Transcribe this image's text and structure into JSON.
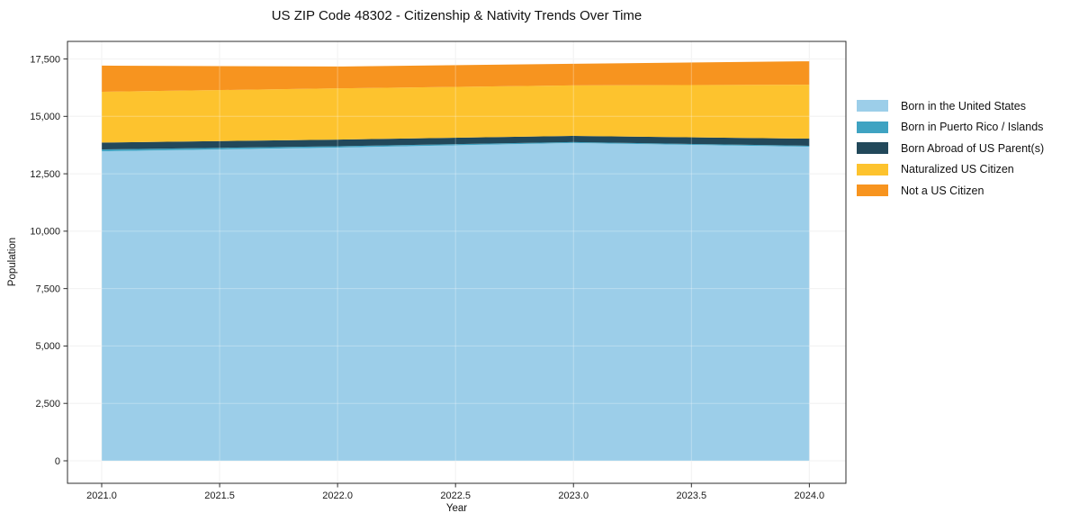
{
  "title": "US ZIP Code 48302 - Citizenship & Nativity Trends Over Time",
  "chart_data": {
    "type": "area",
    "stacked": true,
    "title": "US ZIP Code 48302 - Citizenship & Nativity Trends Over Time",
    "xlabel": "Year",
    "ylabel": "Population",
    "x": [
      2021,
      2022,
      2023,
      2024
    ],
    "series": [
      {
        "name": "Born in the United States",
        "color": "#9ccee9",
        "values": [
          13480,
          13640,
          13840,
          13680
        ]
      },
      {
        "name": "Born in Puerto Rico / Islands",
        "color": "#3fa3c2",
        "values": [
          80,
          60,
          40,
          40
        ]
      },
      {
        "name": "Born Abroad of US Parent(s)",
        "color": "#22485a",
        "values": [
          300,
          290,
          270,
          310
        ]
      },
      {
        "name": "Naturalized US Citizen",
        "color": "#fdc32e",
        "values": [
          2210,
          2230,
          2200,
          2350
        ]
      },
      {
        "name": "Not a US Citizen",
        "color": "#f7941f",
        "values": [
          1140,
          950,
          940,
          1020
        ]
      }
    ],
    "totals": [
      17210,
      17170,
      17290,
      17400
    ],
    "x_ticks": [
      2021,
      2021.5,
      2022,
      2022.5,
      2023,
      2023.5,
      2024
    ],
    "x_tick_labels": [
      "2021.0",
      "2021.5",
      "2022.0",
      "2022.5",
      "2023.0",
      "2023.5",
      "2024.0"
    ],
    "y_ticks": [
      0,
      2500,
      5000,
      7500,
      10000,
      12500,
      15000,
      17500
    ],
    "y_tick_labels": [
      "0",
      "2,500",
      "5,000",
      "7,500",
      "10,000",
      "12,500",
      "15,000",
      "17,500"
    ],
    "xlim": [
      2020.855,
      2024.155
    ],
    "ylim": [
      -980,
      18265
    ],
    "grid": true,
    "legend_position": "right-outside",
    "colors": {
      "grid": "#ececec",
      "spine": "#2e2e2e",
      "tick_label": "#1a1a1a",
      "background": "#ffffff"
    }
  }
}
